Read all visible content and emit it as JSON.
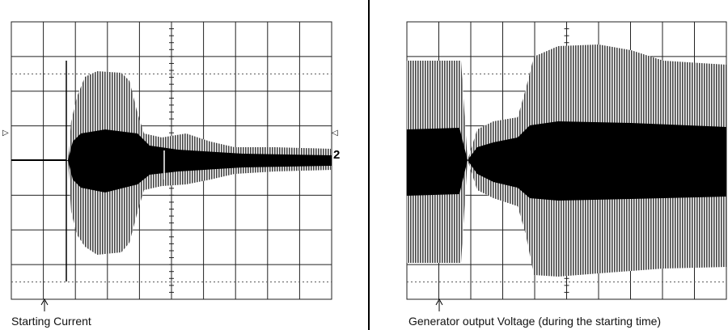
{
  "panels": [
    {
      "caption": "Starting Current",
      "channel_label": "2"
    },
    {
      "caption": "Generator output Voltage (during the starting time)"
    }
  ]
}
